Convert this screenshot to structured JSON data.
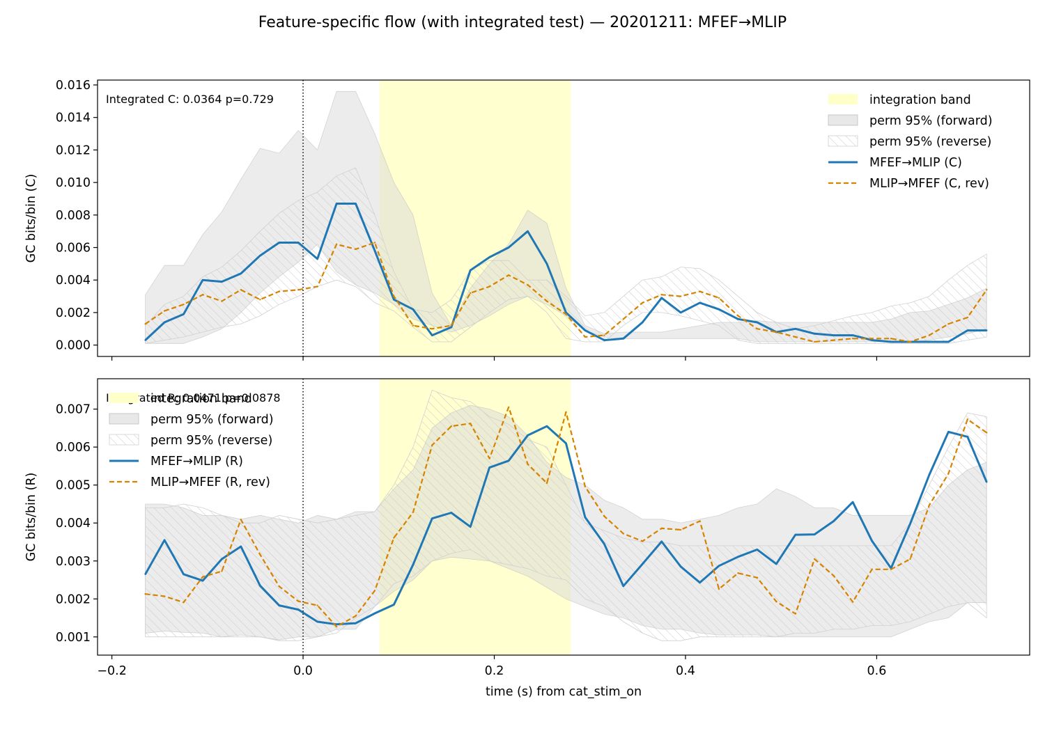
{
  "title": "Feature-specific flow (with integrated test) — 20201211: MFEF→MLIP",
  "colors": {
    "forward": "#1f77b4",
    "reverse": "#d68300",
    "integration_band": "#ffffc8",
    "perm_forward": "#d9d9d9",
    "perm_reverse_hatch": "#c8c8c8",
    "stim_line": "#000000"
  },
  "chart_data": [
    {
      "type": "line",
      "id": "top",
      "xlabel": "",
      "ylabel": "GC bits/bin (C)",
      "xlim": [
        -0.215,
        0.76
      ],
      "ylim": [
        -0.0007,
        0.0163
      ],
      "xticks": [
        -0.2,
        0.0,
        0.2,
        0.4,
        0.6
      ],
      "xtick_labels": [],
      "yticks": [
        0.0,
        0.002,
        0.004,
        0.006,
        0.008,
        0.01,
        0.012,
        0.014,
        0.016
      ],
      "ytick_labels": [
        "0.000",
        "0.002",
        "0.004",
        "0.006",
        "0.008",
        "0.010",
        "0.012",
        "0.014",
        "0.016"
      ],
      "annotation": "Integrated C: 0.0364  p=0.729",
      "integration_band": [
        0.08,
        0.28
      ],
      "stim_onset": 0.0,
      "legend_position": "upper right",
      "legend": [
        "integration band",
        "perm 95% (forward)",
        "perm 95% (reverse)",
        "MFEF→MLIP (C)",
        "MLIP→MFEF (C, rev)"
      ],
      "x": [
        -0.165,
        -0.145,
        -0.125,
        -0.105,
        -0.085,
        -0.065,
        -0.045,
        -0.025,
        -0.005,
        0.015,
        0.035,
        0.055,
        0.075,
        0.095,
        0.115,
        0.135,
        0.155,
        0.175,
        0.195,
        0.215,
        0.235,
        0.255,
        0.275,
        0.295,
        0.315,
        0.335,
        0.355,
        0.375,
        0.395,
        0.415,
        0.435,
        0.455,
        0.475,
        0.495,
        0.515,
        0.535,
        0.555,
        0.575,
        0.595,
        0.615,
        0.635,
        0.655,
        0.675,
        0.695,
        0.715
      ],
      "series": [
        {
          "name": "MFEF→MLIP (C)",
          "role": "forward",
          "style": "solid",
          "values": [
            0.0003,
            0.0014,
            0.0019,
            0.004,
            0.0039,
            0.0044,
            0.0055,
            0.0063,
            0.0063,
            0.0053,
            0.0087,
            0.0087,
            0.0058,
            0.0028,
            0.0022,
            0.0006,
            0.0011,
            0.0046,
            0.0054,
            0.006,
            0.007,
            0.005,
            0.002,
            0.0009,
            0.0003,
            0.0004,
            0.0014,
            0.0029,
            0.002,
            0.0026,
            0.0022,
            0.0016,
            0.0014,
            0.0008,
            0.001,
            0.0007,
            0.0006,
            0.0006,
            0.0003,
            0.0002,
            0.0002,
            0.0002,
            0.0002,
            0.0009,
            0.0009
          ]
        },
        {
          "name": "MLIP→MFEF (C, rev)",
          "role": "reverse",
          "style": "dashed",
          "values": [
            0.0013,
            0.0021,
            0.0025,
            0.0031,
            0.0027,
            0.0034,
            0.0028,
            0.0033,
            0.0034,
            0.0036,
            0.0062,
            0.0059,
            0.0063,
            0.003,
            0.0012,
            0.001,
            0.0012,
            0.0032,
            0.0036,
            0.0043,
            0.0037,
            0.0027,
            0.0019,
            0.0005,
            0.0006,
            0.0016,
            0.0026,
            0.0031,
            0.003,
            0.0033,
            0.0029,
            0.0018,
            0.001,
            0.0008,
            0.0005,
            0.0002,
            0.0003,
            0.0004,
            0.0004,
            0.0004,
            0.0002,
            0.0006,
            0.0013,
            0.0017,
            0.0034
          ]
        }
      ],
      "bands": [
        {
          "name": "perm 95% (forward)",
          "role": "perm_forward",
          "lower": [
            0.0001,
            0.0001,
            0.0001,
            0.0005,
            0.001,
            0.002,
            0.0032,
            0.0042,
            0.0051,
            0.0062,
            0.0045,
            0.0037,
            0.0032,
            0.0025,
            0.0016,
            0.0012,
            0.0008,
            0.0012,
            0.0018,
            0.0025,
            0.003,
            0.0025,
            0.0018,
            0.0009,
            0.0005,
            0.0004,
            0.0004,
            0.0004,
            0.0004,
            0.0004,
            0.0004,
            0.0004,
            0.0002,
            0.0002,
            0.0002,
            0.0002,
            0.0002,
            0.0002,
            0.0002,
            0.0002,
            0.0002,
            0.0003,
            0.0005,
            0.0007,
            0.001
          ],
          "upper": [
            0.0031,
            0.0049,
            0.0049,
            0.0068,
            0.0082,
            0.0102,
            0.0121,
            0.0118,
            0.0132,
            0.012,
            0.0156,
            0.0156,
            0.013,
            0.01,
            0.008,
            0.0032,
            0.0012,
            0.0035,
            0.005,
            0.0062,
            0.0083,
            0.0075,
            0.0035,
            0.0012,
            0.0007,
            0.0008,
            0.0008,
            0.0008,
            0.001,
            0.0012,
            0.0014,
            0.0014,
            0.0015,
            0.0014,
            0.0014,
            0.0014,
            0.0014,
            0.0014,
            0.0014,
            0.0016,
            0.002,
            0.0021,
            0.0025,
            0.0029,
            0.0035
          ]
        },
        {
          "name": "perm 95% (reverse)",
          "role": "perm_reverse",
          "lower": [
            0.0001,
            0.0003,
            0.0005,
            0.0008,
            0.0011,
            0.0013,
            0.0018,
            0.0025,
            0.003,
            0.0036,
            0.004,
            0.0036,
            0.0026,
            0.0021,
            0.0011,
            0.0002,
            0.0002,
            0.0011,
            0.002,
            0.0028,
            0.003,
            0.002,
            0.0004,
            0.0002,
            0.0002,
            0.0012,
            0.002,
            0.002,
            0.0018,
            0.0015,
            0.0012,
            0.0003,
            0.0001,
            0.0001,
            0.0001,
            0.0001,
            0.0001,
            0.0001,
            0.0001,
            0.0001,
            0.0001,
            0.0001,
            0.0001,
            0.0003,
            0.0005
          ],
          "upper": [
            0.0012,
            0.0025,
            0.003,
            0.0042,
            0.0048,
            0.0058,
            0.007,
            0.0081,
            0.0089,
            0.0094,
            0.0104,
            0.0109,
            0.008,
            0.0045,
            0.0022,
            0.002,
            0.0028,
            0.0046,
            0.0052,
            0.0052,
            0.004,
            0.004,
            0.003,
            0.0018,
            0.002,
            0.003,
            0.004,
            0.0042,
            0.0048,
            0.0047,
            0.004,
            0.003,
            0.002,
            0.0014,
            0.001,
            0.0012,
            0.0015,
            0.0018,
            0.002,
            0.0024,
            0.0026,
            0.003,
            0.004,
            0.0049,
            0.0056
          ]
        }
      ]
    },
    {
      "type": "line",
      "id": "bottom",
      "xlabel": "time (s) from cat_stim_on",
      "ylabel": "GC bits/bin (R)",
      "xlim": [
        -0.215,
        0.76
      ],
      "ylim": [
        0.00052,
        0.0078
      ],
      "xticks": [
        -0.2,
        0.0,
        0.2,
        0.4,
        0.6
      ],
      "xtick_labels": [
        "−0.2",
        "0.0",
        "0.2",
        "0.4",
        "0.6"
      ],
      "yticks": [
        0.001,
        0.002,
        0.003,
        0.004,
        0.005,
        0.006,
        0.007
      ],
      "ytick_labels": [
        "0.001",
        "0.002",
        "0.003",
        "0.004",
        "0.005",
        "0.006",
        "0.007"
      ],
      "annotation": "Integrated R: 0.0471  p=0.0878",
      "integration_band": [
        0.08,
        0.28
      ],
      "stim_onset": 0.0,
      "legend_position": "upper left",
      "legend": [
        "integration band",
        "perm 95% (forward)",
        "perm 95% (reverse)",
        "MFEF→MLIP (R)",
        "MLIP→MFEF (R, rev)"
      ],
      "x": [
        -0.165,
        -0.145,
        -0.125,
        -0.105,
        -0.085,
        -0.065,
        -0.045,
        -0.025,
        -0.005,
        0.015,
        0.035,
        0.055,
        0.075,
        0.095,
        0.115,
        0.135,
        0.155,
        0.175,
        0.195,
        0.215,
        0.235,
        0.255,
        0.275,
        0.295,
        0.315,
        0.335,
        0.355,
        0.375,
        0.395,
        0.415,
        0.435,
        0.455,
        0.475,
        0.495,
        0.515,
        0.535,
        0.555,
        0.575,
        0.595,
        0.615,
        0.635,
        0.655,
        0.675,
        0.695,
        0.715
      ],
      "series": [
        {
          "name": "MFEF→MLIP (R)",
          "role": "forward",
          "style": "solid",
          "values": [
            0.00265,
            0.00355,
            0.00265,
            0.00248,
            0.00305,
            0.00338,
            0.00235,
            0.00183,
            0.00172,
            0.0014,
            0.00133,
            0.00136,
            0.00162,
            0.00185,
            0.0029,
            0.00412,
            0.00427,
            0.0039,
            0.00546,
            0.00564,
            0.00631,
            0.00655,
            0.0061,
            0.00415,
            0.00345,
            0.00234,
            0.00292,
            0.00351,
            0.00285,
            0.00243,
            0.00287,
            0.00311,
            0.0033,
            0.00292,
            0.00369,
            0.0037,
            0.00405,
            0.00455,
            0.00353,
            0.00281,
            0.00398,
            0.00527,
            0.0064,
            0.00627,
            0.00508
          ]
        },
        {
          "name": "MLIP→MFEF (R, rev)",
          "role": "reverse",
          "style": "dashed",
          "values": [
            0.00213,
            0.00207,
            0.00191,
            0.00258,
            0.00273,
            0.00409,
            0.00317,
            0.00233,
            0.00194,
            0.00183,
            0.00127,
            0.00155,
            0.00222,
            0.00361,
            0.00428,
            0.00605,
            0.00655,
            0.00662,
            0.0057,
            0.00705,
            0.00555,
            0.00505,
            0.00692,
            0.00496,
            0.00418,
            0.00372,
            0.00352,
            0.00386,
            0.00382,
            0.00405,
            0.00226,
            0.00268,
            0.00256,
            0.00193,
            0.00161,
            0.00305,
            0.00261,
            0.00192,
            0.00278,
            0.00278,
            0.00305,
            0.00447,
            0.0053,
            0.00673,
            0.00638
          ]
        }
      ],
      "bands": [
        {
          "name": "perm 95% (forward)",
          "role": "perm_forward",
          "lower": [
            0.0011,
            0.00115,
            0.00112,
            0.0011,
            0.001,
            0.00105,
            0.001,
            0.00092,
            0.001,
            0.001,
            0.0012,
            0.0012,
            0.0018,
            0.0022,
            0.0025,
            0.003,
            0.0031,
            0.00305,
            0.003,
            0.0028,
            0.0026,
            0.0023,
            0.002,
            0.0018,
            0.0016,
            0.0015,
            0.0013,
            0.0012,
            0.0012,
            0.0011,
            0.00105,
            0.00105,
            0.00105,
            0.001,
            0.001,
            0.001,
            0.001,
            0.001,
            0.001,
            0.001,
            0.0012,
            0.0014,
            0.0015,
            0.0019,
            0.0019
          ],
          "upper": [
            0.0045,
            0.0045,
            0.0044,
            0.0042,
            0.0042,
            0.0041,
            0.0042,
            0.0041,
            0.004,
            0.0042,
            0.0041,
            0.0043,
            0.0043,
            0.0049,
            0.0054,
            0.0065,
            0.0069,
            0.0071,
            0.007,
            0.0068,
            0.0063,
            0.0056,
            0.0052,
            0.005,
            0.0046,
            0.0044,
            0.0041,
            0.0041,
            0.004,
            0.0041,
            0.0042,
            0.0044,
            0.0045,
            0.0049,
            0.0047,
            0.0044,
            0.0044,
            0.0042,
            0.0042,
            0.0042,
            0.0042,
            0.0044,
            0.005,
            0.0054,
            0.0056
          ]
        },
        {
          "name": "perm 95% (reverse)",
          "role": "perm_reverse",
          "lower": [
            0.001,
            0.001,
            0.001,
            0.001,
            0.001,
            0.001,
            0.001,
            0.0009,
            0.0009,
            0.001,
            0.0011,
            0.0015,
            0.0018,
            0.0024,
            0.0026,
            0.003,
            0.0032,
            0.0033,
            0.003,
            0.0029,
            0.0028,
            0.0026,
            0.0025,
            0.002,
            0.0018,
            0.0014,
            0.0011,
            0.0009,
            0.0009,
            0.001,
            0.001,
            0.001,
            0.001,
            0.001,
            0.0011,
            0.0011,
            0.0012,
            0.0012,
            0.0013,
            0.0013,
            0.0014,
            0.0016,
            0.0018,
            0.0019,
            0.0015
          ],
          "upper": [
            0.0044,
            0.0044,
            0.0045,
            0.0044,
            0.0042,
            0.004,
            0.004,
            0.0042,
            0.0041,
            0.004,
            0.0041,
            0.0042,
            0.0043,
            0.005,
            0.006,
            0.0075,
            0.0073,
            0.0072,
            0.0068,
            0.0066,
            0.0062,
            0.006,
            0.005,
            0.004,
            0.0038,
            0.0036,
            0.0035,
            0.0035,
            0.0034,
            0.0034,
            0.0034,
            0.0034,
            0.0034,
            0.0034,
            0.0034,
            0.0034,
            0.0034,
            0.0034,
            0.0034,
            0.0034,
            0.004,
            0.005,
            0.006,
            0.0069,
            0.0068
          ]
        }
      ]
    }
  ]
}
